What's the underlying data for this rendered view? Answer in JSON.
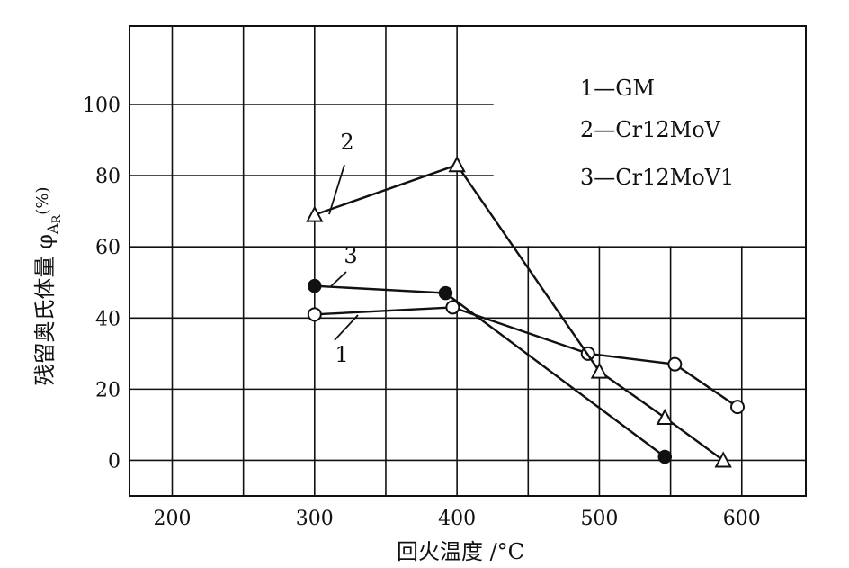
{
  "chart_data": {
    "type": "line",
    "xlabel": "回火温度 /°C",
    "ylabel": "残留奥氏体量 φ",
    "ylabel_sub": "A",
    "ylabel_subsub": "R",
    "ylabel_unit": "(%)",
    "xlim": [
      170,
      645
    ],
    "ylim": [
      -10,
      122
    ],
    "x_ticks": [
      200,
      300,
      400,
      500,
      600
    ],
    "y_ticks": [
      0,
      20,
      40,
      60,
      80,
      100
    ],
    "x_gridlines": [
      200,
      250,
      300,
      350,
      400,
      450,
      500,
      550,
      600
    ],
    "y_gridlines": [
      0,
      20,
      40,
      60,
      80,
      100
    ],
    "grid": true,
    "legend_position": "top-right",
    "series": [
      {
        "name": "1—GM",
        "label": "1",
        "marker": "circle-open",
        "color": "#111111",
        "x": [
          300,
          397,
          492,
          553,
          597
        ],
        "y": [
          41,
          43,
          30,
          27,
          15
        ]
      },
      {
        "name": "2—Cr12MoV",
        "label": "2",
        "marker": "triangle-open",
        "color": "#111111",
        "x": [
          300,
          400,
          500,
          546,
          587
        ],
        "y": [
          69,
          83,
          25,
          12,
          0
        ]
      },
      {
        "name": "3—Cr12MoV1",
        "label": "3",
        "marker": "circle-filled",
        "color": "#111111",
        "x": [
          300,
          392,
          546
        ],
        "y": [
          49,
          47,
          1
        ]
      }
    ]
  }
}
